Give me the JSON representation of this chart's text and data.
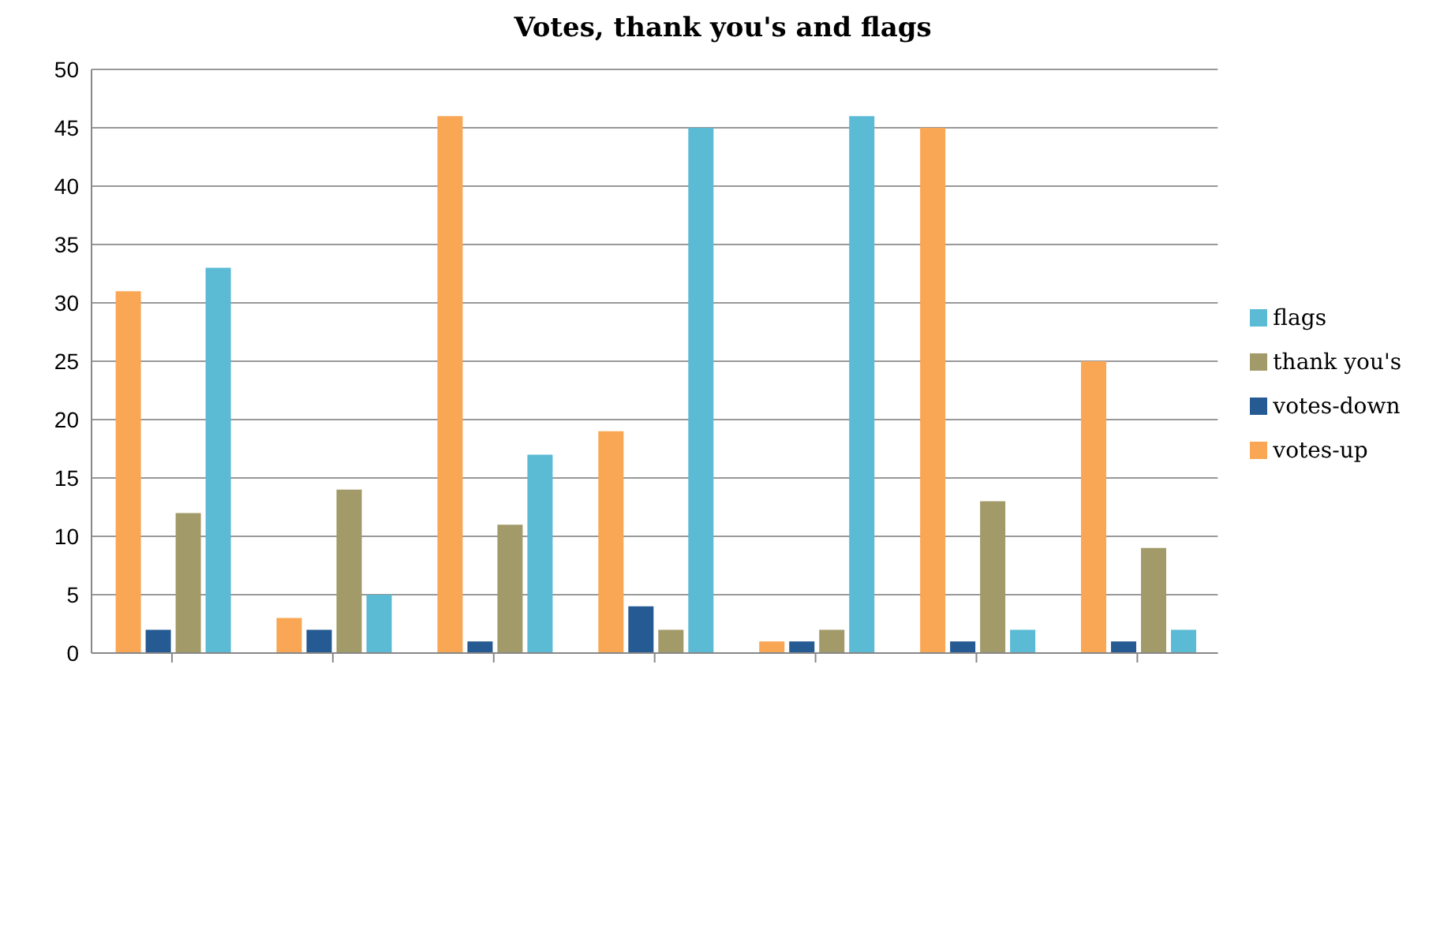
{
  "chart_data": {
    "type": "bar",
    "title": "Votes, thank you's and flags",
    "categories": [
      null,
      null,
      null,
      null,
      null,
      null,
      null
    ],
    "series": [
      {
        "name": "votes-up",
        "color": "#f9a655",
        "values": [
          31,
          3,
          46,
          19,
          1,
          45,
          25
        ]
      },
      {
        "name": "votes-down",
        "color": "#255a92",
        "values": [
          2,
          2,
          1,
          4,
          1,
          1,
          1
        ]
      },
      {
        "name": "thank you's",
        "color": "#a39a6a",
        "values": [
          12,
          14,
          11,
          2,
          2,
          13,
          9
        ]
      },
      {
        "name": "flags",
        "color": "#5bbad4",
        "values": [
          33,
          5,
          17,
          45,
          46,
          2,
          2
        ]
      }
    ],
    "ylim": [
      0,
      50
    ],
    "yticks": [
      0,
      5,
      10,
      15,
      20,
      25,
      30,
      35,
      40,
      45,
      50
    ],
    "grid": "y",
    "legend": "right"
  }
}
